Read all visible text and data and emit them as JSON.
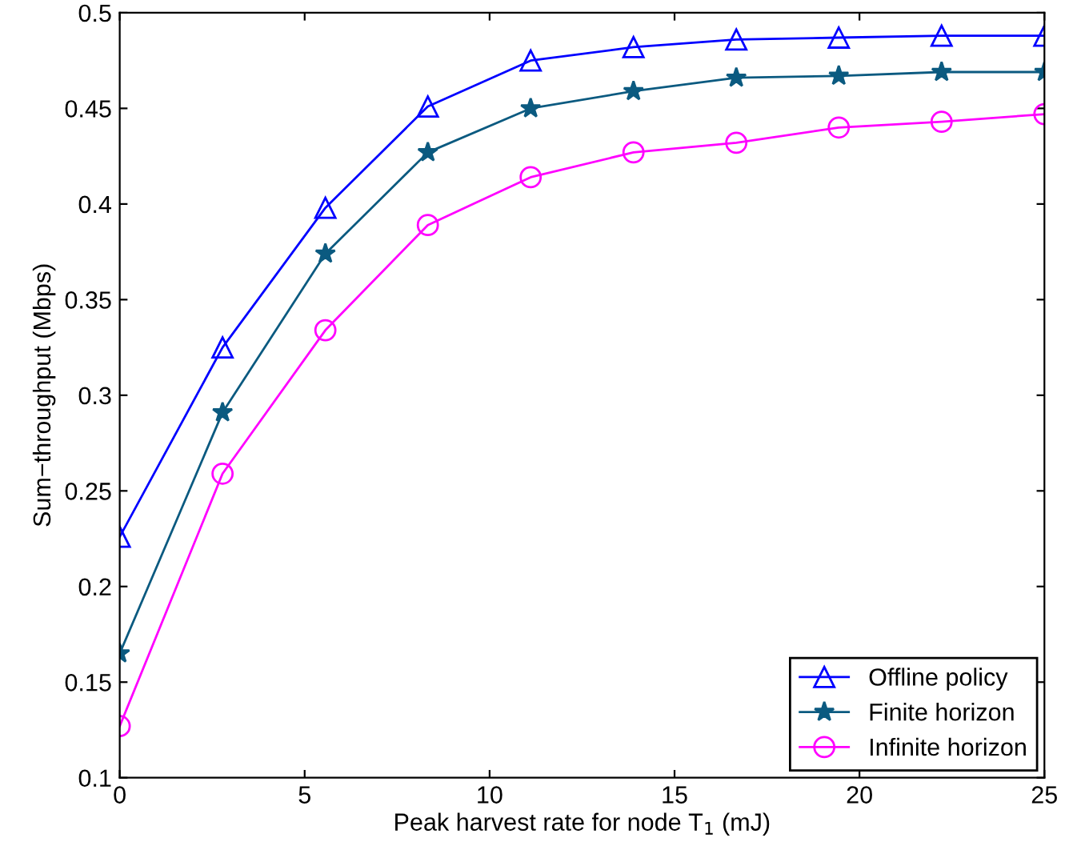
{
  "chart_data": {
    "type": "line",
    "xlabel": "Peak harvest rate for node T$_{1}$ (mJ)",
    "ylabel": "Sum−throughput (Mbps)",
    "x": [
      0,
      2.78,
      5.56,
      8.33,
      11.11,
      13.89,
      16.67,
      19.44,
      22.22,
      25
    ],
    "series": [
      {
        "name": "Offline policy",
        "color": "#0000ff",
        "marker": "triangle",
        "values": [
          0.226,
          0.325,
          0.398,
          0.451,
          0.475,
          0.482,
          0.486,
          0.487,
          0.488,
          0.488
        ]
      },
      {
        "name": "Finite horizon",
        "color": "#0b5a80",
        "marker": "star",
        "values": [
          0.165,
          0.291,
          0.374,
          0.427,
          0.45,
          0.459,
          0.466,
          0.467,
          0.469,
          0.469
        ]
      },
      {
        "name": "Infinite horizon",
        "color": "#ff00ff",
        "marker": "circle",
        "values": [
          0.127,
          0.259,
          0.334,
          0.389,
          0.414,
          0.427,
          0.432,
          0.44,
          0.443,
          0.447
        ]
      }
    ],
    "xlim": [
      0,
      25
    ],
    "xticks": [
      0,
      5,
      10,
      15,
      20,
      25
    ],
    "ylim": [
      0.1,
      0.5
    ],
    "yticks": [
      0.1,
      0.15,
      0.2,
      0.25,
      0.3,
      0.35,
      0.4,
      0.45,
      0.5
    ],
    "grid": false,
    "legend": "bottom right",
    "line_style": "solid"
  }
}
